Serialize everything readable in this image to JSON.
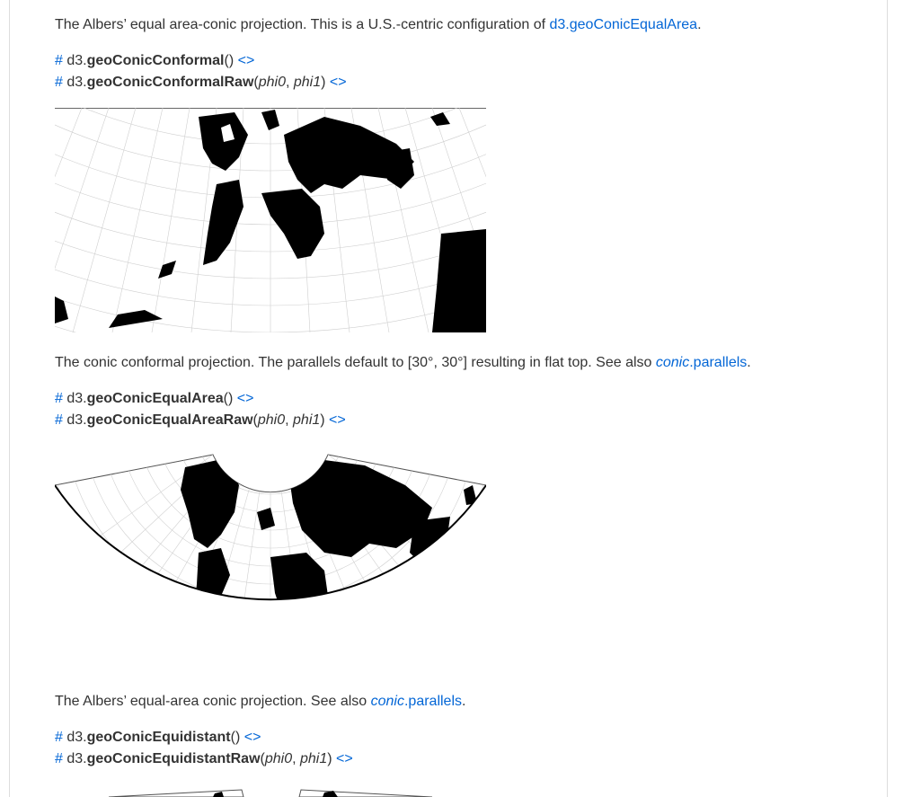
{
  "sections": [
    {
      "intro": {
        "before": "The Albers’ equal area-conic projection. This is a U.S.-centric configuration of ",
        "link": "d3.geoConicEqualArea",
        "after": "."
      }
    },
    {
      "sig1": {
        "hash": "#",
        "prefix": "d3.",
        "name": "geoConicConformal",
        "args": "()",
        "source": "<>"
      },
      "sig2": {
        "hash": "#",
        "prefix": "d3.",
        "name": "geoConicConformalRaw",
        "open": "(",
        "arg1": "phi0",
        "sep": ", ",
        "arg2": "phi1",
        "close": ")",
        "source": "<>"
      },
      "description": {
        "before": "The conic conformal projection. The parallels default to [30°, 30°] resulting in flat top. See also ",
        "link_italic": "conic",
        "link_rest": ".parallels",
        "after": "."
      }
    },
    {
      "sig1": {
        "hash": "#",
        "prefix": "d3.",
        "name": "geoConicEqualArea",
        "args": "()",
        "source": "<>"
      },
      "sig2": {
        "hash": "#",
        "prefix": "d3.",
        "name": "geoConicEqualAreaRaw",
        "open": "(",
        "arg1": "phi0",
        "sep": ", ",
        "arg2": "phi1",
        "close": ")",
        "source": "<>"
      },
      "description": {
        "before": "The Albers’ equal-area conic projection. See also ",
        "link_italic": "conic",
        "link_rest": ".parallels",
        "after": "."
      }
    },
    {
      "sig1": {
        "hash": "#",
        "prefix": "d3.",
        "name": "geoConicEquidistant",
        "args": "()",
        "source": "<>"
      },
      "sig2": {
        "hash": "#",
        "prefix": "d3.",
        "name": "geoConicEquidistantRaw",
        "open": "(",
        "arg1": "phi0",
        "sep": ", ",
        "arg2": "phi1",
        "close": ")",
        "source": "<>"
      }
    }
  ],
  "colors": {
    "link": "#0366d6",
    "text": "#333333",
    "land": "#000000",
    "graticule": "#cccccc"
  },
  "icons": {
    "conformal_map": "conic-conformal-map-image",
    "equal_area_map": "conic-equal-area-map-image",
    "equidistant_map": "conic-equidistant-map-image"
  }
}
